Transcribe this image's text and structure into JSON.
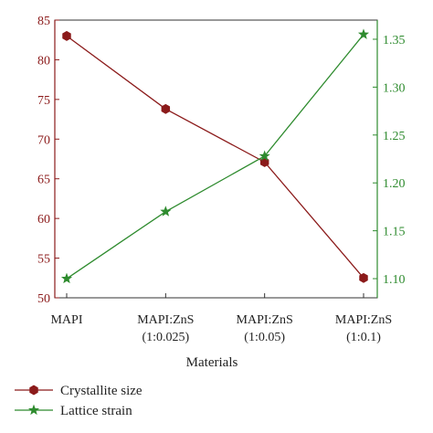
{
  "chart_data": {
    "type": "line",
    "categories": [
      "MAPI",
      "MAPI:ZnS\n(1:0.025)",
      "MAPI:ZnS\n(1:0.05)",
      "MAPI:ZnS\n(1:0.1)"
    ],
    "xlabel": "Materials",
    "y_left": {
      "ylim": [
        50,
        85
      ],
      "ticks": [
        50,
        55,
        60,
        65,
        70,
        75,
        80,
        85
      ],
      "color": "#8b1a1a"
    },
    "y_right": {
      "ylim": [
        1.08,
        1.37
      ],
      "ticks": [
        "1.10",
        "1.15",
        "1.20",
        "1.25",
        "1.30",
        "1.35"
      ],
      "color": "#2e8b2e"
    },
    "series": [
      {
        "name": "Crystallite size",
        "axis": "left",
        "marker": "hexagon",
        "color": "#8b1a1a",
        "values": [
          83,
          73.8,
          67.1,
          52.5
        ]
      },
      {
        "name": "Lattice strain",
        "axis": "right",
        "marker": "star",
        "color": "#2e8b2e",
        "values": [
          1.1,
          1.17,
          1.228,
          1.355
        ]
      }
    ],
    "legend_position": "bottom-left",
    "grid": false
  }
}
